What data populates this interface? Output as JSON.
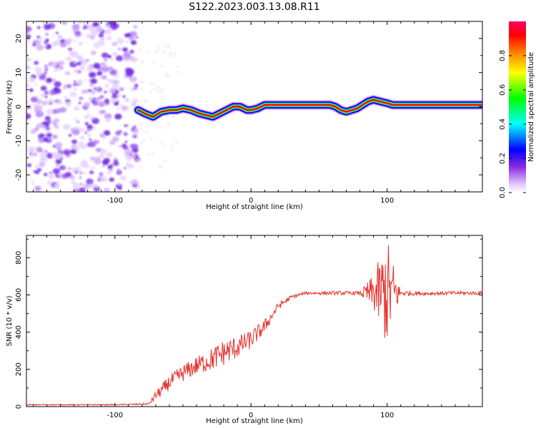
{
  "figure_title": "S122.2023.003.13.08.R11",
  "chart_data": [
    {
      "type": "heatmap",
      "xlabel": "Height of straight line (km)",
      "ylabel": "Frequency (Hz)",
      "xlim": [
        -165,
        170
      ],
      "ylim": [
        -25,
        25
      ],
      "xticks": [
        -100,
        0,
        100
      ],
      "xtick_labels": [
        "-100",
        "0",
        "100"
      ],
      "yticks": [
        -20,
        -10,
        0,
        10,
        20
      ],
      "ytick_labels": [
        "-20",
        "-10",
        "0",
        "10",
        "20"
      ],
      "colorbar": {
        "label": "Normalized spectral amplitude",
        "range": [
          0,
          1
        ],
        "ticks": [
          0.0,
          0.2,
          0.4,
          0.6,
          0.8
        ],
        "tick_labels": [
          "0.0",
          "0.2",
          "0.4",
          "0.6",
          "0.8"
        ],
        "colormap": [
          "#ffffff",
          "#8a2be2",
          "#0000ff",
          "#00ffff",
          "#00ff00",
          "#ffff00",
          "#ff8000",
          "#ff0000",
          "#ff0066"
        ]
      },
      "noise_region_x": [
        -165,
        -83
      ],
      "signal_ridge": {
        "x": [
          -83,
          -78,
          -72,
          -66,
          -60,
          -55,
          -50,
          -44,
          -38,
          -33,
          -28,
          -23,
          -18,
          -13,
          -8,
          -3,
          0,
          5,
          10,
          20,
          40,
          58,
          62,
          66,
          70,
          74,
          78,
          82,
          86,
          90,
          95,
          100,
          104,
          108,
          120,
          150,
          170
        ],
        "frequency_hz": [
          -1,
          -2,
          -3,
          -1.5,
          -1,
          -1,
          -0.5,
          -1,
          -2,
          -2.5,
          -3,
          -2,
          -1,
          0,
          0,
          -1,
          -1,
          -0.5,
          0.5,
          0.5,
          0.5,
          0.5,
          0,
          -1,
          -1.5,
          -1,
          -0.5,
          0.5,
          1.5,
          2,
          1.5,
          1,
          0.5,
          0.5,
          0.5,
          0.5,
          0.5
        ]
      }
    },
    {
      "type": "line",
      "xlabel": "Height of straight line (km)",
      "ylabel": "SNR (10 * v/v)",
      "xlim": [
        -165,
        170
      ],
      "ylim": [
        0,
        920
      ],
      "xticks": [
        -100,
        0,
        100
      ],
      "xtick_labels": [
        "-100",
        "0",
        "100"
      ],
      "yticks": [
        0,
        200,
        400,
        600,
        800
      ],
      "ytick_labels": [
        "0",
        "200",
        "400",
        "600",
        "800"
      ],
      "series": [
        {
          "color": "#e8322d",
          "x": [
            -165,
            -130,
            -100,
            -85,
            -75,
            -70,
            -65,
            -60,
            -50,
            -40,
            -30,
            -20,
            -10,
            0,
            10,
            20,
            30,
            40,
            60,
            80,
            90,
            100,
            110,
            130,
            150,
            170
          ],
          "y": [
            10,
            10,
            10,
            12,
            15,
            60,
            90,
            130,
            180,
            220,
            250,
            290,
            320,
            360,
            430,
            540,
            590,
            610,
            610,
            610,
            610,
            610,
            610,
            608,
            610,
            610
          ],
          "noise_amplitude": [
            3,
            3,
            3,
            4,
            5,
            25,
            35,
            40,
            45,
            50,
            60,
            70,
            60,
            50,
            40,
            20,
            10,
            8,
            10,
            10,
            100,
            300,
            15,
            10,
            10,
            10
          ]
        }
      ]
    }
  ]
}
